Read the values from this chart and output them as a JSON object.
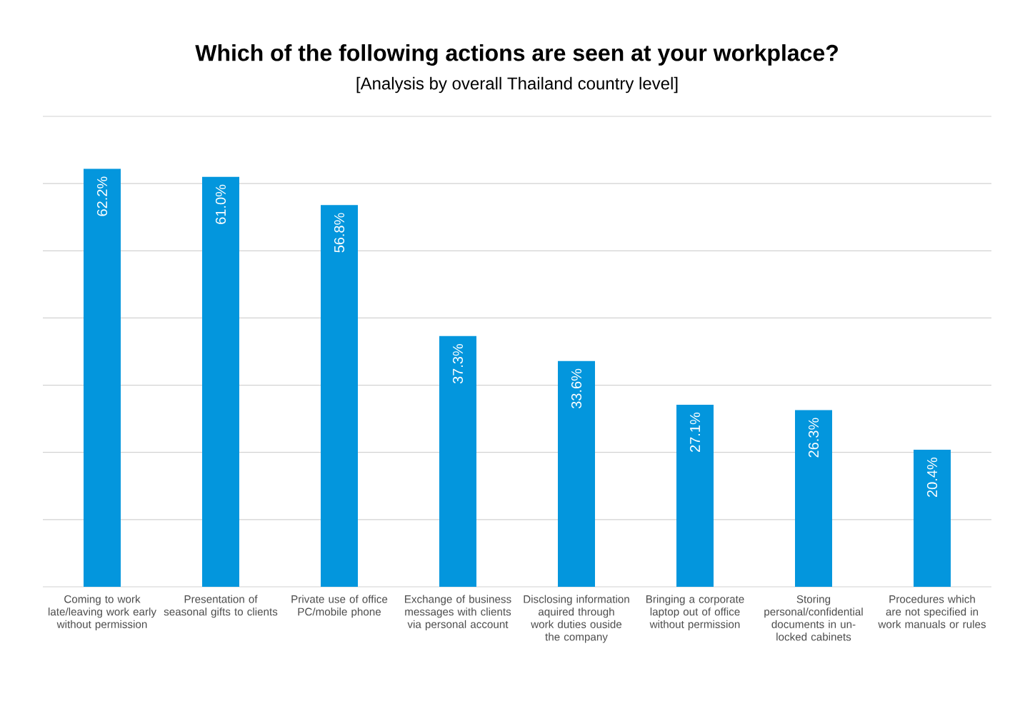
{
  "chart_data": {
    "type": "bar",
    "title": "Which of the following actions are seen at your workplace?",
    "subtitle": "[Analysis by overall Thailand country level]",
    "categories": [
      "Coming to work late/leaving work early without permission",
      "Presentation of seasonal gifts to clients",
      "Private use of office PC/mobile phone",
      "Exchange of business messages with clients via personal account",
      "Disclosing information aquired through work duties ouside the company",
      "Bringing a corporate laptop out of office without permission",
      "Storing personal/confidential documents in un-locked cabinets",
      "Procedures which are not specified in work manuals or rules"
    ],
    "values": [
      62.2,
      61.0,
      56.8,
      37.3,
      33.6,
      27.1,
      26.3,
      20.4
    ],
    "value_labels": [
      "62.2%",
      "61.0%",
      "56.8%",
      "37.3%",
      "33.6%",
      "27.1%",
      "26.3%",
      "20.4%"
    ],
    "color": "#0396dd",
    "ylim": [
      0,
      70
    ],
    "yticks": [
      0,
      10,
      20,
      30,
      40,
      50,
      60,
      70
    ],
    "grid": "y",
    "tick_labels": "x"
  }
}
